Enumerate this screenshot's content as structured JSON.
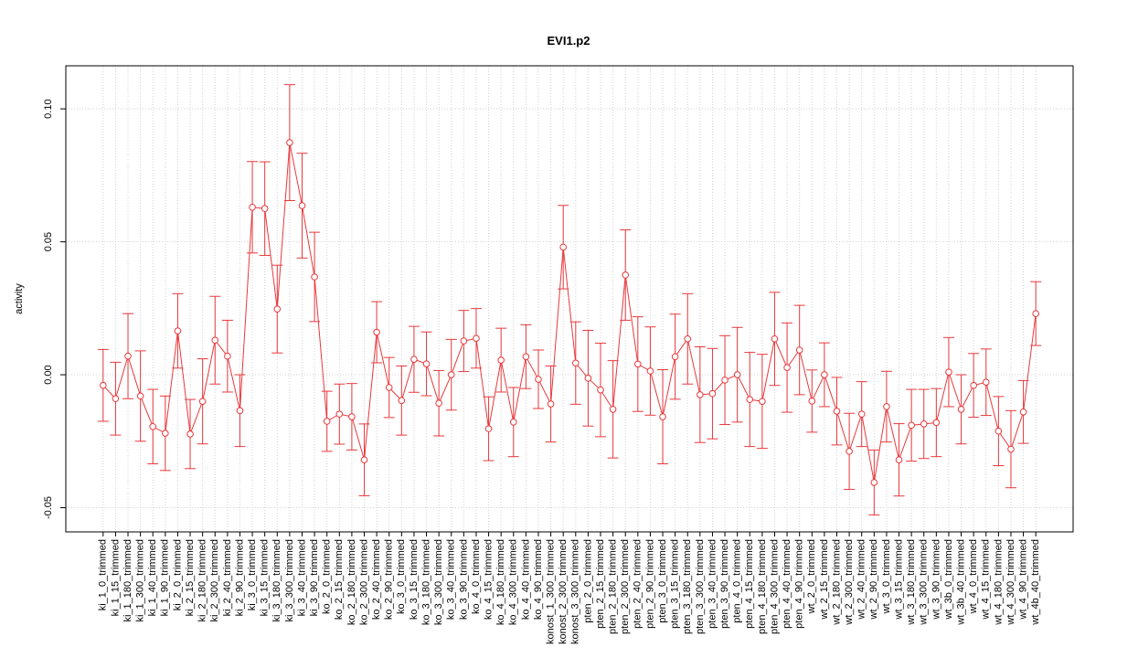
{
  "chart_data": {
    "type": "line",
    "title": "EVI1.p2",
    "y_label": "activity",
    "categories": [
      "ki_1_0_trimmed",
      "ki_1_15_trimmed",
      "ki_1_180_trimmed",
      "ki_1_300_trimmed",
      "ki_1_40_trimmed",
      "ki_1_90_trimmed",
      "ki_2_0_trimmed",
      "ki_2_15_trimmed",
      "ki_2_180_trimmed",
      "ki_2_300_trimmed",
      "ki_2_40_trimmed",
      "ki_2_90_trimmed",
      "ki_3_0_trimmed",
      "ki_3_15_trimmed",
      "ki_3_180_trimmed",
      "ki_3_300_trimmed",
      "ki_3_40_trimmed",
      "ki_3_90_trimmed",
      "ko_2_0_trimmed",
      "ko_2_15_trimmed",
      "ko_2_180_trimmed",
      "ko_2_300_trimmed",
      "ko_2_40_trimmed",
      "ko_2_90_trimmed",
      "ko_3_0_trimmed",
      "ko_3_15_trimmed",
      "ko_3_180_trimmed",
      "ko_3_300_trimmed",
      "ko_3_40_trimmed",
      "ko_3_90_trimmed",
      "ko_4_0_trimmed",
      "ko_4_15_trimmed",
      "ko_4_180_trimmed",
      "ko_4_300_trimmed",
      "ko_4_40_trimmed",
      "ko_4_90_trimmed",
      "konost_1_300_trimmed",
      "konost_2_300_trimmed",
      "konost_3_300_trimmed",
      "pten_2_0_trimmed",
      "pten_2_15_trimmed",
      "pten_2_180_trimmed",
      "pten_2_300_trimmed",
      "pten_2_40_trimmed",
      "pten_2_90_trimmed",
      "pten_3_0_trimmed",
      "pten_3_15_trimmed",
      "pten_3_180_trimmed",
      "pten_3_300_trimmed",
      "pten_3_40_trimmed",
      "pten_3_90_trimmed",
      "pten_4_0_trimmed",
      "pten_4_15_trimmed",
      "pten_4_180_trimmed",
      "pten_4_300_trimmed",
      "pten_4_40_trimmed",
      "pten_4_90_trimmed",
      "wt_2_0_trimmed",
      "wt_2_15_trimmed",
      "wt_2_180_trimmed",
      "wt_2_300_trimmed",
      "wt_2_40_trimmed",
      "wt_2_90_trimmed",
      "wt_3_0_trimmed",
      "wt_3_15_trimmed",
      "wt_3_180_trimmed",
      "wt_3_300_trimmed",
      "wt_3_90_trimmed",
      "wt_3b_0_trimmed",
      "wt_3b_40_trimmed",
      "wt_4_0_trimmed",
      "wt_4_15_trimmed",
      "wt_4_180_trimmed",
      "wt_4_300_trimmed",
      "wt_4_90_trimmed",
      "wt_4b_40_trimmed"
    ],
    "values": [
      -0.004,
      -0.009,
      0.007,
      -0.008,
      -0.0195,
      -0.022,
      0.0165,
      -0.0223,
      -0.01,
      0.013,
      0.007,
      -0.0135,
      0.063,
      0.0625,
      0.0247,
      0.0873,
      0.0636,
      0.0368,
      -0.0175,
      -0.0148,
      -0.0158,
      -0.032,
      0.016,
      -0.0048,
      -0.0097,
      0.0058,
      0.0041,
      -0.0107,
      0.0,
      0.0127,
      0.0137,
      -0.0203,
      0.0055,
      -0.0178,
      0.0068,
      -0.0017,
      -0.011,
      0.048,
      0.0044,
      -0.0013,
      -0.0057,
      -0.013,
      0.0375,
      0.004,
      0.0014,
      -0.0158,
      0.0068,
      0.0135,
      -0.0075,
      -0.0071,
      -0.002,
      0.0,
      -0.0093,
      -0.01,
      0.0135,
      0.0027,
      0.0093,
      -0.0099,
      0.0,
      -0.0137,
      -0.0288,
      -0.0148,
      -0.0405,
      -0.012,
      -0.032,
      -0.019,
      -0.0185,
      -0.018,
      0.001,
      -0.013,
      -0.004,
      -0.0028,
      -0.0212,
      -0.028,
      -0.014,
      0.023
    ],
    "errors": [
      0.0135,
      0.0137,
      0.016,
      0.017,
      0.014,
      0.014,
      0.014,
      0.013,
      0.016,
      0.0165,
      0.0135,
      0.0135,
      0.0172,
      0.0176,
      0.0165,
      0.0218,
      0.0197,
      0.0168,
      0.0113,
      0.0113,
      0.0125,
      0.0135,
      0.0115,
      0.0113,
      0.013,
      0.0124,
      0.012,
      0.0123,
      0.0133,
      0.0115,
      0.0112,
      0.012,
      0.012,
      0.013,
      0.012,
      0.011,
      0.0143,
      0.0157,
      0.0155,
      0.018,
      0.0176,
      0.0183,
      0.017,
      0.0178,
      0.0166,
      0.0177,
      0.016,
      0.017,
      0.018,
      0.017,
      0.0167,
      0.0178,
      0.0177,
      0.0177,
      0.0175,
      0.0168,
      0.0168,
      0.0117,
      0.012,
      0.0127,
      0.0143,
      0.0122,
      0.0122,
      0.0133,
      0.0136,
      0.0135,
      0.013,
      0.0128,
      0.013,
      0.013,
      0.012,
      0.0125,
      0.013,
      0.0145,
      0.0118,
      0.012
    ],
    "color": "#e8383c",
    "ylim": [
      -0.0591,
      0.1162
    ],
    "yticks": [
      -0.05,
      {
        "value": 0,
        "label": "0.00"
      },
      0.05,
      {
        "value": 0.1,
        "label": "0.10"
      }
    ],
    "grid": true
  }
}
